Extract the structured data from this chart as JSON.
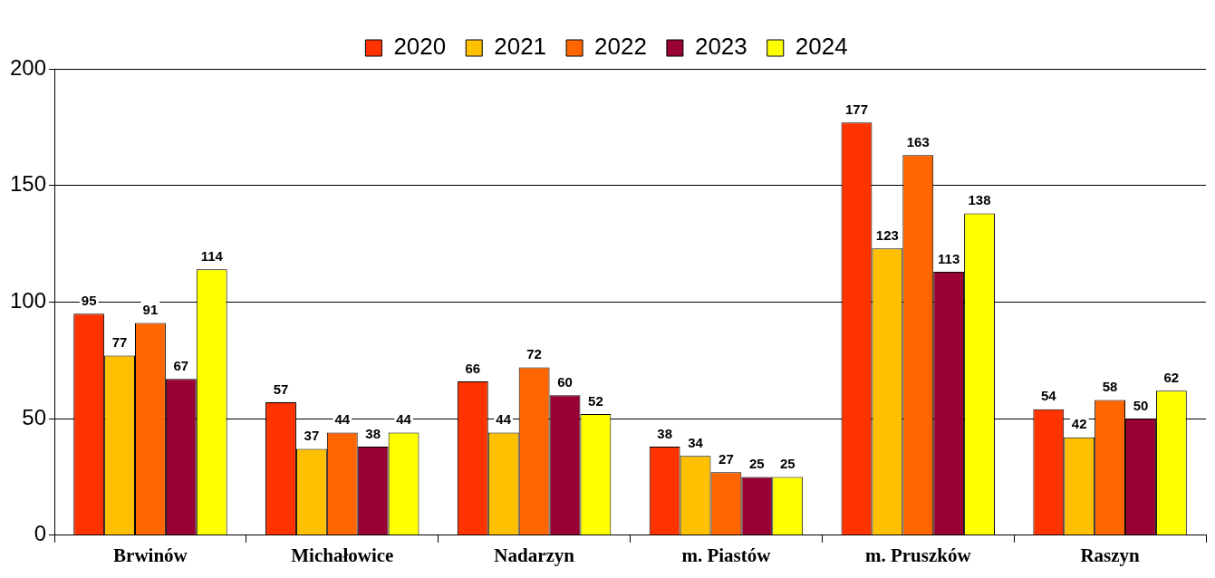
{
  "chart_data": {
    "type": "bar",
    "categories": [
      "Brwinów",
      "Michałowice",
      "Nadarzyn",
      "m. Piastów",
      "m. Pruszków",
      "Raszyn"
    ],
    "series": [
      {
        "name": "2020",
        "color": "#ff3300",
        "values": [
          95,
          57,
          66,
          38,
          177,
          54
        ]
      },
      {
        "name": "2021",
        "color": "#ffc000",
        "values": [
          77,
          37,
          44,
          34,
          123,
          42
        ]
      },
      {
        "name": "2022",
        "color": "#ff6600",
        "values": [
          91,
          44,
          72,
          27,
          163,
          58
        ]
      },
      {
        "name": "2023",
        "color": "#990033",
        "values": [
          67,
          38,
          60,
          25,
          113,
          50
        ]
      },
      {
        "name": "2024",
        "color": "#ffff00",
        "values": [
          114,
          44,
          52,
          25,
          138,
          62
        ]
      }
    ],
    "ylim": [
      0,
      200
    ],
    "yticks": [
      0,
      50,
      100,
      150,
      200
    ],
    "grid": "y",
    "legend": "top",
    "data_labels": true
  }
}
